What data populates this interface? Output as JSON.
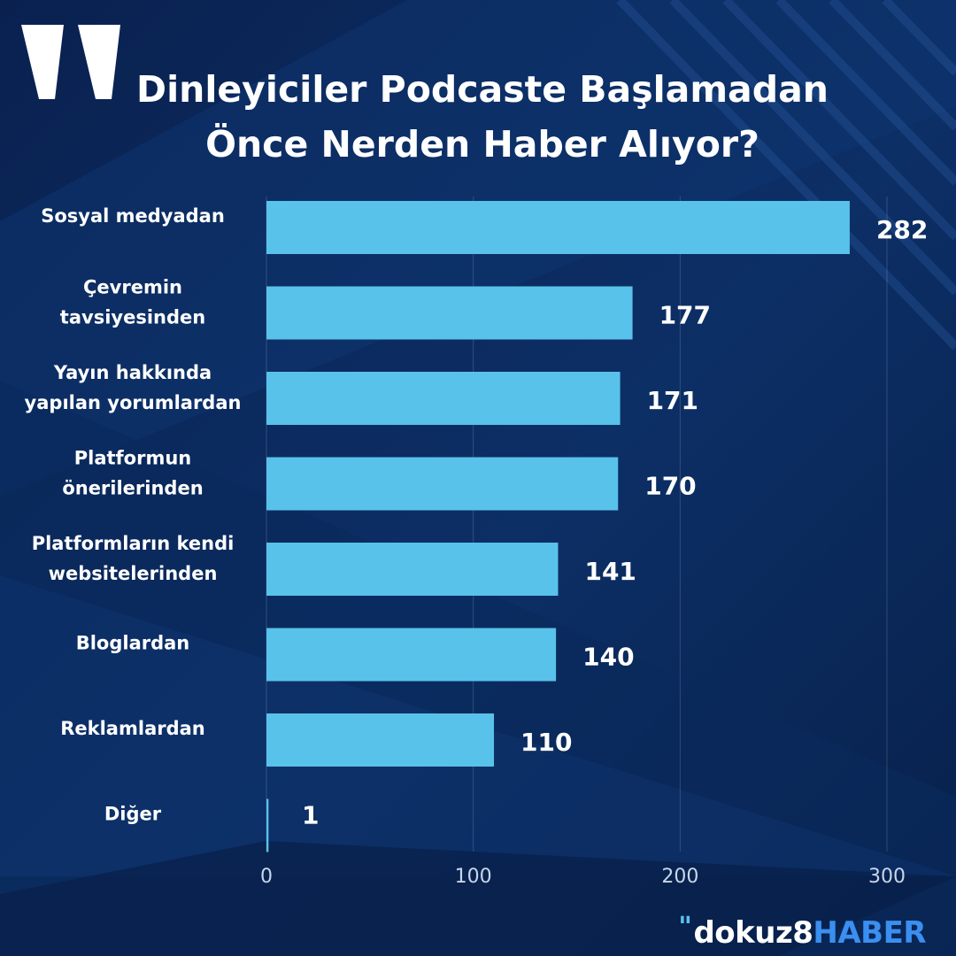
{
  "title": {
    "line1": "Dinleyiciler Podcaste Başlamadan",
    "line2": "Önce Nerden Haber Alıyor?"
  },
  "brand": {
    "quote": "\"",
    "part1": "dokuz8",
    "part2": "HABER"
  },
  "colors": {
    "bar": "#58c2ea",
    "background": "#0b2a5a",
    "text": "#ffffff"
  },
  "icons": [
    "quote-mark-icon"
  ],
  "chart_data": {
    "type": "bar",
    "orientation": "horizontal",
    "title": "Dinleyiciler Podcaste Başlamadan Önce Nerden Haber Alıyor?",
    "categories": [
      [
        "Sosyal medyadan"
      ],
      [
        "Çevremin",
        "tavsiyesinden"
      ],
      [
        "Yayın hakkında",
        "yapılan yorumlardan"
      ],
      [
        "Platformun",
        "önerilerinden"
      ],
      [
        "Platformların kendi",
        "websitelerinden"
      ],
      [
        "Bloglardan"
      ],
      [
        "Reklamlardan"
      ],
      [
        "Diğer"
      ]
    ],
    "values": [
      282,
      177,
      171,
      170,
      141,
      140,
      110,
      1
    ],
    "value_labels": [
      "282",
      "177",
      "171",
      "170",
      "141",
      "140",
      "110",
      "1"
    ],
    "xlim": [
      0,
      300
    ],
    "xticks": [
      0,
      100,
      200,
      300
    ],
    "xtick_labels": [
      "0",
      "100",
      "200",
      "300"
    ],
    "grid": "vertical",
    "legend": "none"
  }
}
